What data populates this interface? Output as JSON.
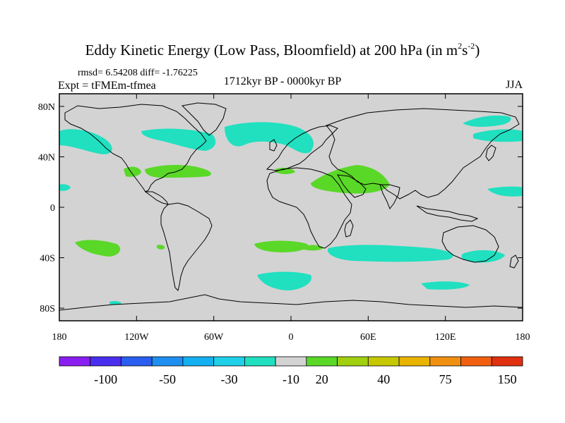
{
  "header": {
    "title_text": "Eddy Kinetic Energy (Low Pass, Bloomfield) at 200 hPa (in m",
    "title_sup1": "2",
    "title_mid": "s",
    "title_sup2": "-2",
    "title_close": ")",
    "stats": "rmsd= 6.54208 diff= -1.76225",
    "expt": "Expt = tFMEm-tfmea",
    "period": "1712kyr BP - 0000kyr BP",
    "season": "JJA"
  },
  "map": {
    "projection": "cylindrical equidistant",
    "background_color": "#d3d3d3",
    "lat_ticks": [
      "80N",
      "40N",
      "0",
      "40S",
      "80S"
    ],
    "lon_ticks": [
      "180",
      "120W",
      "60W",
      "0",
      "60E",
      "120E",
      "180"
    ]
  },
  "colorbar": {
    "colors": [
      "#8a1ef0",
      "#4a2ef0",
      "#2a5ef0",
      "#1e8ef0",
      "#14b0f0",
      "#1ed0e8",
      "#20e0c0",
      "#d3d3d3",
      "#5ad828",
      "#a0d010",
      "#c8c800",
      "#e8b400",
      "#f09010",
      "#f06010",
      "#e03010"
    ],
    "labels": [
      "-100",
      "-50",
      "-30",
      "-10",
      "20",
      "40",
      "75",
      "150"
    ]
  },
  "colors": {
    "positive": "#5ad828",
    "negative": "#20e0c0",
    "neutral": "#d3d3d3"
  }
}
